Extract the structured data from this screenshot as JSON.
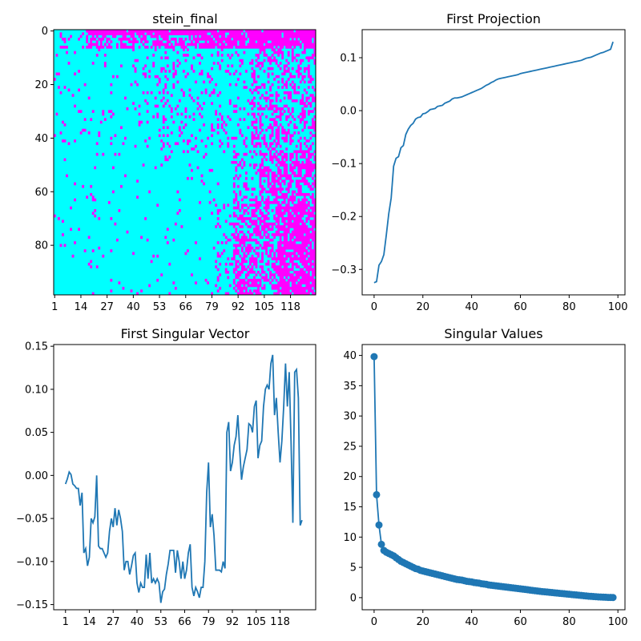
{
  "figure": {
    "background": "#ffffff"
  },
  "chart_data": [
    {
      "type": "heatmap",
      "title": "stein_final",
      "rows": 99,
      "cols": 130,
      "colors": {
        "zero": "#00ffff",
        "one": "#ff00ff"
      },
      "x_tick_labels": [
        "1",
        "14",
        "27",
        "40",
        "53",
        "66",
        "79",
        "92",
        "105",
        "118"
      ],
      "y_tick_labels": [
        "0",
        "20",
        "40",
        "60",
        "80"
      ],
      "cell_pattern_note": "binary matrix; top rows mostly 1 on the right, lower-right block dense with 1s"
    },
    {
      "type": "line",
      "title": "First Projection",
      "x": [
        0,
        1,
        2,
        3,
        4,
        5,
        6,
        7,
        8,
        9,
        10,
        11,
        12,
        13,
        14,
        15,
        16,
        17,
        18,
        19,
        20,
        21,
        22,
        23,
        24,
        25,
        26,
        27,
        28,
        29,
        30,
        31,
        32,
        33,
        34,
        35,
        36,
        37,
        38,
        39,
        40,
        41,
        42,
        43,
        44,
        45,
        46,
        47,
        48,
        49,
        50,
        51,
        52,
        53,
        54,
        55,
        56,
        57,
        58,
        59,
        60,
        61,
        62,
        63,
        64,
        65,
        66,
        67,
        68,
        69,
        70,
        71,
        72,
        73,
        74,
        75,
        76,
        77,
        78,
        79,
        80,
        81,
        82,
        83,
        84,
        85,
        86,
        87,
        88,
        89,
        90,
        91,
        92,
        93,
        94,
        95,
        96,
        97,
        98
      ],
      "y": [
        -0.325,
        -0.323,
        -0.292,
        -0.285,
        -0.272,
        -0.235,
        -0.195,
        -0.165,
        -0.105,
        -0.09,
        -0.087,
        -0.07,
        -0.066,
        -0.045,
        -0.035,
        -0.028,
        -0.024,
        -0.016,
        -0.013,
        -0.012,
        -0.006,
        -0.005,
        -0.002,
        0.002,
        0.003,
        0.004,
        0.008,
        0.009,
        0.01,
        0.014,
        0.016,
        0.018,
        0.022,
        0.024,
        0.024,
        0.025,
        0.026,
        0.028,
        0.03,
        0.032,
        0.034,
        0.036,
        0.038,
        0.04,
        0.042,
        0.045,
        0.048,
        0.05,
        0.053,
        0.055,
        0.058,
        0.06,
        0.061,
        0.062,
        0.063,
        0.064,
        0.065,
        0.066,
        0.067,
        0.068,
        0.07,
        0.071,
        0.072,
        0.073,
        0.074,
        0.075,
        0.076,
        0.077,
        0.078,
        0.079,
        0.08,
        0.081,
        0.082,
        0.083,
        0.084,
        0.085,
        0.086,
        0.087,
        0.088,
        0.089,
        0.09,
        0.091,
        0.092,
        0.093,
        0.094,
        0.095,
        0.097,
        0.099,
        0.1,
        0.101,
        0.103,
        0.105,
        0.107,
        0.109,
        0.11,
        0.112,
        0.114,
        0.116,
        0.13
      ],
      "xlim": [
        -4.9,
        102.9
      ],
      "ylim": [
        -0.348,
        0.153
      ],
      "x_ticks": [
        0,
        20,
        40,
        60,
        80,
        100
      ],
      "y_ticks": [
        -0.3,
        -0.2,
        -0.1,
        0.0,
        0.1
      ],
      "y_tick_labels": [
        "−0.3",
        "−0.2",
        "−0.1",
        "0.0",
        "0.1"
      ],
      "line_color": "#1f77b4"
    },
    {
      "type": "line",
      "title": "First Singular Vector",
      "x": [
        1,
        2,
        3,
        4,
        5,
        6,
        7,
        8,
        9,
        10,
        11,
        12,
        13,
        14,
        15,
        16,
        17,
        18,
        19,
        20,
        21,
        22,
        23,
        24,
        25,
        26,
        27,
        28,
        29,
        30,
        31,
        32,
        33,
        34,
        35,
        36,
        37,
        38,
        39,
        40,
        41,
        42,
        43,
        44,
        45,
        46,
        47,
        48,
        49,
        50,
        51,
        52,
        53,
        54,
        55,
        56,
        57,
        58,
        59,
        60,
        61,
        62,
        63,
        64,
        65,
        66,
        67,
        68,
        69,
        70,
        71,
        72,
        73,
        74,
        75,
        76,
        77,
        78,
        79,
        80,
        81,
        82,
        83,
        84,
        85,
        86,
        87,
        88,
        89,
        90,
        91,
        92,
        93,
        94,
        95,
        96,
        97,
        98,
        99,
        100,
        101,
        102,
        103,
        104,
        105,
        106,
        107,
        108,
        109,
        110,
        111,
        112,
        113,
        114,
        115,
        116,
        117,
        118,
        119,
        120,
        121,
        122,
        123,
        124,
        125,
        126,
        127,
        128,
        129,
        130
      ],
      "y": [
        -0.01,
        -0.004,
        0.004,
        0.001,
        -0.01,
        -0.012,
        -0.015,
        -0.015,
        -0.035,
        -0.02,
        -0.09,
        -0.085,
        -0.105,
        -0.095,
        -0.05,
        -0.055,
        -0.048,
        0.0,
        -0.082,
        -0.085,
        -0.085,
        -0.09,
        -0.095,
        -0.09,
        -0.065,
        -0.05,
        -0.06,
        -0.038,
        -0.058,
        -0.04,
        -0.05,
        -0.065,
        -0.11,
        -0.1,
        -0.1,
        -0.115,
        -0.105,
        -0.093,
        -0.09,
        -0.125,
        -0.136,
        -0.125,
        -0.13,
        -0.13,
        -0.092,
        -0.12,
        -0.09,
        -0.125,
        -0.12,
        -0.125,
        -0.12,
        -0.125,
        -0.148,
        -0.135,
        -0.132,
        -0.115,
        -0.103,
        -0.087,
        -0.087,
        -0.087,
        -0.113,
        -0.087,
        -0.1,
        -0.12,
        -0.1,
        -0.12,
        -0.11,
        -0.09,
        -0.08,
        -0.13,
        -0.14,
        -0.13,
        -0.135,
        -0.142,
        -0.13,
        -0.13,
        -0.1,
        -0.02,
        0.015,
        -0.06,
        -0.045,
        -0.07,
        -0.11,
        -0.11,
        -0.11,
        -0.112,
        -0.1,
        -0.108,
        0.05,
        0.062,
        0.005,
        0.015,
        0.035,
        0.045,
        0.07,
        0.03,
        -0.005,
        0.01,
        0.02,
        0.03,
        0.06,
        0.058,
        0.05,
        0.08,
        0.087,
        0.02,
        0.035,
        0.04,
        0.08,
        0.1,
        0.105,
        0.1,
        0.13,
        0.14,
        0.07,
        0.09,
        0.05,
        0.015,
        0.04,
        0.08,
        0.13,
        0.08,
        0.12,
        0.04,
        -0.055,
        0.12,
        0.123,
        0.09,
        -0.058,
        -0.052
      ],
      "xlim": [
        -5.45,
        137.45
      ],
      "ylim": [
        -0.156,
        0.152
      ],
      "x_ticks": [
        1,
        14,
        27,
        40,
        53,
        66,
        79,
        92,
        105,
        118
      ],
      "y_ticks": [
        -0.15,
        -0.1,
        -0.05,
        0.0,
        0.05,
        0.1,
        0.15
      ],
      "y_tick_labels": [
        "−0.15",
        "−0.10",
        "−0.05",
        "0.00",
        "0.05",
        "0.10",
        "0.15"
      ],
      "line_color": "#1f77b4"
    },
    {
      "type": "line",
      "title": "Singular Values",
      "markers": true,
      "x": [
        0,
        1,
        2,
        3,
        4,
        5,
        6,
        7,
        8,
        9,
        10,
        11,
        12,
        13,
        14,
        15,
        16,
        17,
        18,
        19,
        20,
        21,
        22,
        23,
        24,
        25,
        26,
        27,
        28,
        29,
        30,
        31,
        32,
        33,
        34,
        35,
        36,
        37,
        38,
        39,
        40,
        41,
        42,
        43,
        44,
        45,
        46,
        47,
        48,
        49,
        50,
        51,
        52,
        53,
        54,
        55,
        56,
        57,
        58,
        59,
        60,
        61,
        62,
        63,
        64,
        65,
        66,
        67,
        68,
        69,
        70,
        71,
        72,
        73,
        74,
        75,
        76,
        77,
        78,
        79,
        80,
        81,
        82,
        83,
        84,
        85,
        86,
        87,
        88,
        89,
        90,
        91,
        92,
        93,
        94,
        95,
        96,
        97,
        98
      ],
      "y": [
        39.8,
        17.0,
        12.0,
        8.8,
        7.8,
        7.5,
        7.3,
        7.1,
        6.9,
        6.6,
        6.3,
        6.0,
        5.8,
        5.6,
        5.4,
        5.2,
        5.0,
        4.8,
        4.7,
        4.5,
        4.4,
        4.3,
        4.2,
        4.1,
        4.0,
        3.9,
        3.8,
        3.7,
        3.6,
        3.5,
        3.4,
        3.3,
        3.2,
        3.1,
        3.0,
        2.95,
        2.9,
        2.8,
        2.7,
        2.65,
        2.6,
        2.5,
        2.45,
        2.4,
        2.3,
        2.25,
        2.2,
        2.1,
        2.05,
        2.0,
        1.95,
        1.9,
        1.85,
        1.8,
        1.75,
        1.7,
        1.65,
        1.6,
        1.55,
        1.5,
        1.45,
        1.4,
        1.35,
        1.3,
        1.25,
        1.2,
        1.15,
        1.1,
        1.05,
        1.0,
        0.96,
        0.92,
        0.88,
        0.84,
        0.8,
        0.76,
        0.72,
        0.68,
        0.64,
        0.6,
        0.56,
        0.52,
        0.48,
        0.44,
        0.4,
        0.36,
        0.32,
        0.28,
        0.24,
        0.21,
        0.18,
        0.15,
        0.12,
        0.1,
        0.08,
        0.06,
        0.04,
        0.03,
        0.02
      ],
      "xlim": [
        -4.9,
        102.9
      ],
      "ylim": [
        -2.0,
        41.8
      ],
      "x_ticks": [
        0,
        20,
        40,
        60,
        80,
        100
      ],
      "y_ticks": [
        0,
        5,
        10,
        15,
        20,
        25,
        30,
        35,
        40
      ],
      "line_color": "#1f77b4"
    }
  ]
}
